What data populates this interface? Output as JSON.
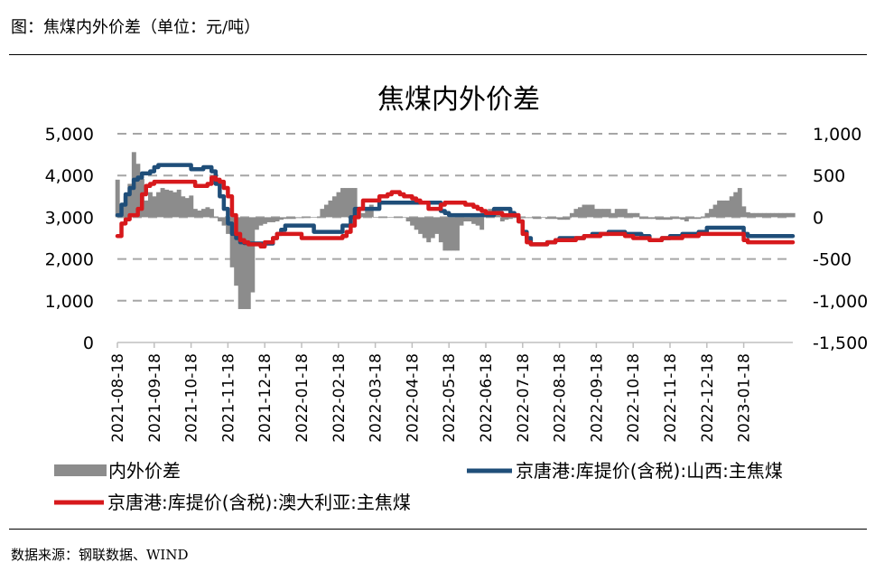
{
  "header": {
    "title": "图：焦煤内外价差（单位：元/吨）"
  },
  "footer": {
    "source": "数据来源：钢联数据、WIND"
  },
  "colors": {
    "spread": "#8c8c8c",
    "shanxi": "#1f4e79",
    "australia": "#d7191c",
    "grid": "#a6a6a6"
  },
  "chart_data": {
    "type": "line",
    "title": "焦煤内外价差",
    "y_left": {
      "min": 0,
      "max": 5000,
      "ticks": [
        "0",
        "1,000",
        "2,000",
        "3,000",
        "4,000",
        "5,000"
      ],
      "values": [
        0,
        1000,
        2000,
        3000,
        4000,
        5000
      ]
    },
    "y_right": {
      "min": -1500,
      "max": 1000,
      "ticks": [
        "-1,500",
        "-1,000",
        "-500",
        "0",
        "500",
        "1,000"
      ],
      "values": [
        -1500,
        -1000,
        -500,
        0,
        500,
        1000
      ]
    },
    "x_range": [
      0,
      165
    ],
    "x_ticks": [
      "2021-08-18",
      "2021-09-18",
      "2021-10-18",
      "2021-11-18",
      "2021-12-18",
      "2022-01-18",
      "2022-02-18",
      "2022-03-18",
      "2022-04-18",
      "2022-05-18",
      "2022-06-18",
      "2022-07-18",
      "2022-08-18",
      "2022-09-18",
      "2022-10-18",
      "2022-11-18",
      "2022-12-18",
      "2023-01-18"
    ],
    "x_tick_positions": [
      0,
      9,
      18,
      27,
      36,
      45,
      54,
      63,
      72,
      81,
      90,
      99,
      108,
      117,
      126,
      135,
      144,
      153
    ],
    "series": [
      {
        "name": "内外价差",
        "kind": "area",
        "axis": "right",
        "x": [
          0,
          1,
          2,
          3,
          4,
          5,
          6,
          7,
          8,
          9,
          10,
          11,
          12,
          13,
          14,
          15,
          16,
          17,
          18,
          19,
          20,
          21,
          22,
          23,
          24,
          25,
          26,
          27,
          28,
          29,
          30,
          31,
          32,
          33,
          34,
          35,
          36,
          37,
          38,
          39,
          40,
          41,
          42,
          43,
          44,
          45,
          46,
          47,
          48,
          49,
          50,
          51,
          52,
          53,
          54,
          55,
          56,
          57,
          58,
          59,
          60,
          61,
          62,
          63,
          64,
          65,
          66,
          67,
          68,
          69,
          70,
          71,
          72,
          73,
          74,
          75,
          76,
          77,
          78,
          79,
          80,
          81,
          82,
          83,
          84,
          85,
          86,
          87,
          88,
          89,
          90,
          91,
          92,
          93,
          94,
          95,
          96,
          97,
          98,
          99,
          100,
          101,
          102,
          103,
          104,
          105,
          106,
          107,
          108,
          109,
          110,
          111,
          112,
          113,
          114,
          115,
          116,
          117,
          118,
          119,
          120,
          121,
          122,
          123,
          124,
          125,
          126,
          127,
          128,
          129,
          130,
          131,
          132,
          133,
          134,
          135,
          136,
          137,
          138,
          139,
          140,
          141,
          142,
          143,
          144,
          145,
          146,
          147,
          148,
          149,
          150,
          151,
          152,
          153,
          154,
          155,
          156,
          157,
          158,
          159,
          160,
          161,
          162,
          163,
          164,
          165
        ],
        "values": [
          450,
          150,
          250,
          400,
          780,
          640,
          460,
          200,
          300,
          250,
          300,
          350,
          330,
          320,
          300,
          330,
          250,
          230,
          260,
          100,
          80,
          100,
          120,
          100,
          0,
          -50,
          -100,
          -200,
          -600,
          -820,
          -1100,
          -1100,
          -1100,
          -900,
          -150,
          -100,
          -80,
          -60,
          -60,
          -50,
          -30,
          -20,
          -20,
          -20,
          -10,
          -10,
          -5,
          -5,
          -5,
          0,
          100,
          150,
          200,
          250,
          300,
          350,
          350,
          350,
          350,
          0,
          50,
          100,
          150,
          0,
          0,
          0,
          0,
          0,
          0,
          0,
          0,
          -50,
          -100,
          -150,
          -200,
          -250,
          -300,
          -250,
          -200,
          -300,
          -400,
          -400,
          -400,
          -400,
          -100,
          -50,
          -50,
          -80,
          -100,
          -150,
          50,
          100,
          50,
          80,
          -50,
          -30,
          -20,
          -10,
          -20,
          -10,
          -10,
          -10,
          -20,
          -20,
          0,
          -20,
          -20,
          -20,
          -30,
          -30,
          -30,
          50,
          100,
          120,
          150,
          150,
          150,
          100,
          100,
          100,
          100,
          50,
          100,
          100,
          100,
          50,
          50,
          50,
          -20,
          -20,
          -20,
          -20,
          -30,
          -30,
          -30,
          -30,
          -20,
          -20,
          -30,
          -50,
          -20,
          -20,
          -20,
          -10,
          50,
          100,
          150,
          200,
          200,
          200,
          250,
          300,
          350,
          130,
          60,
          50,
          50,
          50,
          50,
          50,
          50,
          50,
          50,
          50,
          50,
          50
        ]
      },
      {
        "name": "京唐港:库提价(含税):山西:主焦煤",
        "kind": "line",
        "axis": "left",
        "x": [
          0,
          1,
          2,
          3,
          4,
          5,
          6,
          7,
          8,
          9,
          10,
          12,
          14,
          16,
          17,
          18,
          19,
          20,
          21,
          22,
          23,
          24,
          25,
          26,
          27,
          28,
          29,
          30,
          31,
          32,
          33,
          34,
          35,
          36,
          38,
          39,
          40,
          41,
          44,
          45,
          46,
          47,
          48,
          51,
          52,
          54,
          55,
          56,
          57,
          58,
          59,
          60,
          61,
          62,
          63,
          64,
          65,
          66,
          67,
          68,
          69,
          70,
          71,
          72,
          73,
          74,
          76,
          78,
          79,
          80,
          81,
          82,
          83,
          84,
          85,
          86,
          87,
          88,
          89,
          90,
          91,
          92,
          93,
          94,
          95,
          96,
          97,
          98,
          99,
          100,
          101,
          102,
          103,
          104,
          105,
          106,
          107,
          108,
          110,
          112,
          114,
          116,
          118,
          120,
          122,
          124,
          126,
          128,
          130,
          131,
          132,
          133,
          134,
          135,
          136,
          138,
          140,
          142,
          144,
          146,
          148,
          150,
          152,
          153,
          154,
          155,
          156,
          158,
          160,
          162,
          164,
          165
        ],
        "values": [
          3050,
          3300,
          3550,
          3700,
          3900,
          3950,
          4050,
          4050,
          4100,
          4200,
          4250,
          4250,
          4250,
          4250,
          4250,
          4150,
          4150,
          4150,
          4200,
          4200,
          4100,
          3800,
          3500,
          3200,
          2850,
          2600,
          2500,
          2400,
          2380,
          2370,
          2370,
          2370,
          2370,
          2370,
          2500,
          2600,
          2700,
          2800,
          2800,
          2800,
          2800,
          2800,
          2650,
          2650,
          2650,
          2650,
          2800,
          2800,
          3000,
          3200,
          3200,
          3200,
          3200,
          3200,
          3200,
          3350,
          3350,
          3350,
          3350,
          3350,
          3350,
          3350,
          3350,
          3350,
          3350,
          3350,
          3350,
          3350,
          3150,
          3100,
          3050,
          3050,
          3050,
          3050,
          3050,
          3050,
          3050,
          3050,
          3050,
          3050,
          3050,
          3200,
          3200,
          3200,
          3200,
          3100,
          3050,
          2900,
          2650,
          2500,
          2350,
          2350,
          2350,
          2350,
          2400,
          2400,
          2450,
          2500,
          2500,
          2500,
          2550,
          2600,
          2600,
          2650,
          2650,
          2600,
          2600,
          2550,
          2450,
          2450,
          2450,
          2500,
          2500,
          2550,
          2550,
          2600,
          2600,
          2650,
          2750,
          2750,
          2750,
          2750,
          2750,
          2600,
          2550,
          2550,
          2550,
          2550,
          2550,
          2550,
          2550,
          2550
        ]
      },
      {
        "name": "京唐港:库提价(含税):澳大利亚:主焦煤",
        "kind": "line",
        "axis": "left",
        "x": [
          0,
          1,
          2,
          3,
          4,
          5,
          6,
          7,
          8,
          9,
          10,
          12,
          14,
          16,
          17,
          18,
          19,
          20,
          21,
          22,
          23,
          24,
          25,
          26,
          27,
          28,
          29,
          30,
          31,
          32,
          33,
          34,
          35,
          36,
          38,
          39,
          40,
          41,
          44,
          45,
          46,
          47,
          48,
          51,
          52,
          54,
          55,
          56,
          57,
          58,
          59,
          60,
          61,
          62,
          63,
          64,
          65,
          66,
          67,
          68,
          69,
          70,
          71,
          72,
          73,
          74,
          76,
          78,
          79,
          80,
          81,
          82,
          83,
          84,
          85,
          86,
          87,
          88,
          89,
          90,
          91,
          92,
          93,
          94,
          95,
          96,
          97,
          98,
          99,
          100,
          101,
          102,
          103,
          104,
          105,
          106,
          107,
          108,
          110,
          112,
          114,
          116,
          118,
          120,
          122,
          124,
          126,
          128,
          130,
          131,
          132,
          133,
          134,
          135,
          136,
          138,
          140,
          142,
          144,
          146,
          148,
          150,
          152,
          153,
          154,
          155,
          156,
          158,
          160,
          162,
          164,
          165
        ],
        "values": [
          2550,
          2850,
          2950,
          3050,
          3050,
          3200,
          3550,
          3750,
          3800,
          3850,
          3850,
          3850,
          3850,
          3850,
          3850,
          3850,
          3750,
          3750,
          3750,
          3800,
          3950,
          3900,
          3850,
          3700,
          3500,
          3050,
          2600,
          2450,
          2400,
          2350,
          2350,
          2350,
          2300,
          2400,
          2500,
          2600,
          2600,
          2600,
          2600,
          2500,
          2500,
          2500,
          2500,
          2500,
          2500,
          2500,
          2550,
          2650,
          2800,
          3000,
          3200,
          3400,
          3400,
          3400,
          3400,
          3500,
          3500,
          3550,
          3600,
          3600,
          3550,
          3500,
          3500,
          3450,
          3400,
          3350,
          3200,
          3200,
          3300,
          3350,
          3350,
          3350,
          3350,
          3350,
          3300,
          3300,
          3250,
          3200,
          3150,
          3100,
          3100,
          3100,
          3100,
          3050,
          3050,
          3050,
          3050,
          2900,
          2600,
          2400,
          2350,
          2350,
          2350,
          2350,
          2400,
          2400,
          2450,
          2450,
          2450,
          2500,
          2550,
          2550,
          2600,
          2600,
          2600,
          2550,
          2500,
          2500,
          2450,
          2450,
          2450,
          2500,
          2500,
          2500,
          2500,
          2550,
          2550,
          2600,
          2600,
          2600,
          2600,
          2600,
          2600,
          2450,
          2400,
          2400,
          2400,
          2400,
          2400,
          2400,
          2400,
          2400
        ]
      }
    ]
  }
}
